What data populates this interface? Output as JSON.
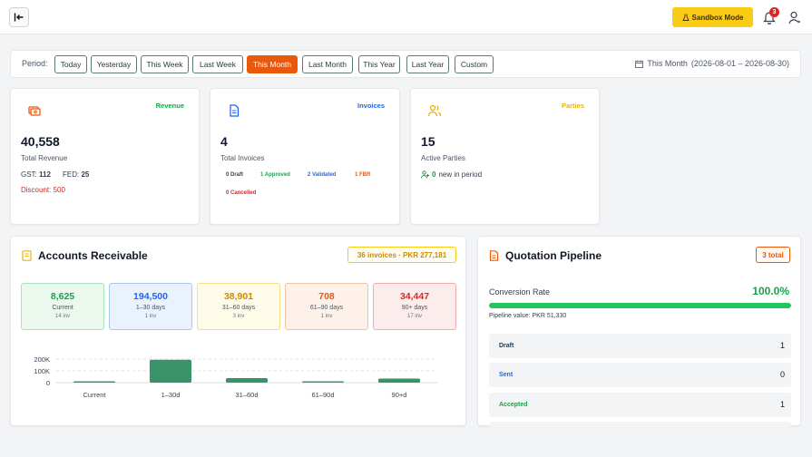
{
  "header": {
    "sandbox_label": "Sandbox Mode",
    "notifications_count": "3"
  },
  "period": {
    "label": "Period:",
    "options": [
      "Today",
      "Yesterday",
      "This Week",
      "Last Week",
      "This Month",
      "Last Month",
      "This Year",
      "Last Year",
      "Custom"
    ],
    "active": "This Month",
    "range_name": "This Month",
    "range_dates": "(2026-08-01 – 2026-08-30)"
  },
  "revenue": {
    "tag": "Revenue",
    "value": "40,558",
    "label": "Total Revenue",
    "gst_label": "GST:",
    "gst_value": "112",
    "fed_label": "FED:",
    "fed_value": "25",
    "discount": "Discount: 500"
  },
  "invoices": {
    "tag": "Invoices",
    "value": "4",
    "label": "Total Invoices",
    "draft": "0 Draft",
    "approved": "1 Approved",
    "validated": "2 Validated",
    "fbr": "1 FBR",
    "cancelled": "0 Cancelled"
  },
  "parties": {
    "tag": "Parties",
    "value": "15",
    "label": "Active Parties",
    "new_count": "0",
    "new_label": "new in period"
  },
  "receivable": {
    "title": "Accounts Receivable",
    "badge": "36 invoices · PKR 277,181",
    "buckets": [
      {
        "value": "8,625",
        "label": "Current",
        "count": "14 inv"
      },
      {
        "value": "194,500",
        "label": "1–30 days",
        "count": "1 inv"
      },
      {
        "value": "38,901",
        "label": "31–60 days",
        "count": "3 inv"
      },
      {
        "value": "708",
        "label": "61–90 days",
        "count": "1 inv"
      },
      {
        "value": "34,447",
        "label": "90+ days",
        "count": "17 inv"
      }
    ]
  },
  "chart_data": {
    "type": "bar",
    "categories": [
      "Current",
      "1–30d",
      "31–60d",
      "61–90d",
      "90+d"
    ],
    "values": [
      8625,
      194500,
      38901,
      708,
      34447
    ],
    "ylim": [
      0,
      200000
    ],
    "yticks": [
      "200K",
      "100K",
      "0"
    ],
    "color": "#3a9368",
    "grid": true
  },
  "pipeline": {
    "title": "Quotation Pipeline",
    "badge": "3 total",
    "conversion_label": "Conversion Rate",
    "conversion_pct": "100.0%",
    "conversion_value": 1.0,
    "pipeline_value": "Pipeline value: PKR 51,330",
    "stages": [
      {
        "name": "Draft",
        "count": "1",
        "color": "#1f3b4d"
      },
      {
        "name": "Sent",
        "count": "0",
        "color": "#2563eb"
      },
      {
        "name": "Accepted",
        "count": "1",
        "color": "#16a34a"
      }
    ]
  },
  "colors": {
    "accent": "#ea580c",
    "revenue": "#16a34a",
    "invoices": "#2563eb",
    "parties": "#eab308"
  }
}
